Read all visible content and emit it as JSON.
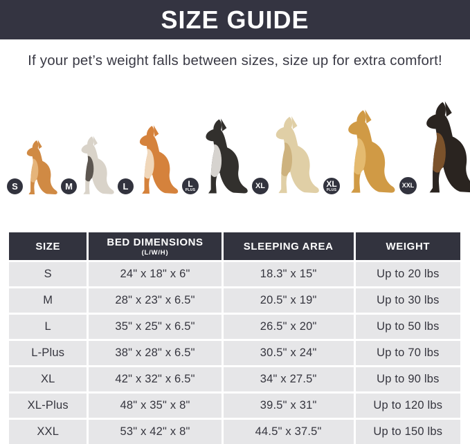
{
  "banner": {
    "title": "SIZE GUIDE",
    "bg_color": "#343441",
    "text_color": "#ffffff"
  },
  "subtitle": "If your pet’s weight falls between sizes, size up for extra comfort!",
  "dogs": [
    {
      "name": "pomeranian",
      "badge": "S",
      "badge_sub": "",
      "color": "#d08a44",
      "accent": "#e9bb84"
    },
    {
      "name": "french-bulldog",
      "badge": "M",
      "badge_sub": "",
      "color": "#d9d3c9",
      "accent": "#45403b"
    },
    {
      "name": "shiba-inu",
      "badge": "L",
      "badge_sub": "",
      "color": "#d5823c",
      "accent": "#f4e6d0"
    },
    {
      "name": "border-collie",
      "badge": "L",
      "badge_sub": "PLUS",
      "color": "#32302d",
      "accent": "#f3f0ec"
    },
    {
      "name": "labrador",
      "badge": "XL",
      "badge_sub": "",
      "color": "#e0cfa6",
      "accent": "#c9ad77"
    },
    {
      "name": "golden-retriever",
      "badge": "XL",
      "badge_sub": "PLUS",
      "color": "#d09a45",
      "accent": "#e8c077"
    },
    {
      "name": "doberman",
      "badge": "XXL",
      "badge_sub": "",
      "color": "#2a2420",
      "accent": "#8a5a2e"
    }
  ],
  "table": {
    "header": [
      {
        "label": "SIZE",
        "sublabel": ""
      },
      {
        "label": "BED DIMENSIONS",
        "sublabel": "(L/W/H)"
      },
      {
        "label": "SLEEPING AREA",
        "sublabel": ""
      },
      {
        "label": "WEIGHT",
        "sublabel": ""
      }
    ],
    "header_bg": "#32333e",
    "row_bg": "#e6e6e8"
  },
  "chart_data": {
    "type": "table",
    "title": "SIZE GUIDE",
    "columns": [
      "SIZE",
      "BED DIMENSIONS (L/W/H)",
      "SLEEPING AREA",
      "WEIGHT"
    ],
    "rows": [
      [
        "S",
        "24\" x 18\" x 6\"",
        "18.3\" x 15\"",
        "Up to 20 lbs"
      ],
      [
        "M",
        "28\" x 23\" x 6.5\"",
        "20.5\" x 19\"",
        "Up to 30 lbs"
      ],
      [
        "L",
        "35\" x 25\" x 6.5\"",
        "26.5\" x 20\"",
        "Up to 50 lbs"
      ],
      [
        "L-Plus",
        "38\" x 28\" x 6.5\"",
        "30.5\" x 24\"",
        "Up to 70 lbs"
      ],
      [
        "XL",
        "42\" x 32\" x 6.5\"",
        "34\" x 27.5\"",
        "Up to 90 lbs"
      ],
      [
        "XL-Plus",
        "48\" x 35\" x 8\"",
        "39.5\" x 31\"",
        "Up to 120 lbs"
      ],
      [
        "XXL",
        "53\" x 42\" x 8\"",
        "44.5\" x 37.5\"",
        "Up to 150 lbs"
      ]
    ]
  }
}
